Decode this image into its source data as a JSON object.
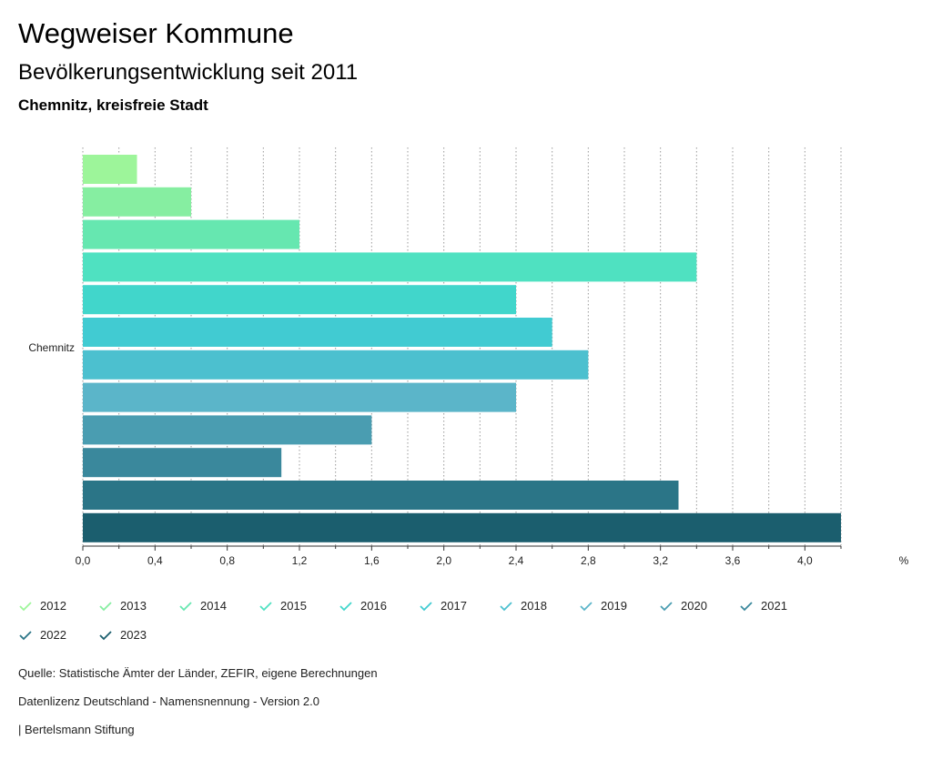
{
  "header": {
    "title": "Wegweiser Kommune",
    "subtitle": "Bevölkerungsentwicklung seit 2011",
    "region": "Chemnitz, kreisfreie Stadt"
  },
  "chart_data": {
    "type": "bar",
    "orientation": "horizontal",
    "categories": [
      "Chemnitz"
    ],
    "series": [
      {
        "name": "2012",
        "values": [
          0.3
        ],
        "color": "#9df59a"
      },
      {
        "name": "2013",
        "values": [
          0.6
        ],
        "color": "#86eea1"
      },
      {
        "name": "2014",
        "values": [
          1.2
        ],
        "color": "#66e7b0"
      },
      {
        "name": "2015",
        "values": [
          3.4
        ],
        "color": "#4fe1c1"
      },
      {
        "name": "2016",
        "values": [
          2.4
        ],
        "color": "#41d6cb"
      },
      {
        "name": "2017",
        "values": [
          2.6
        ],
        "color": "#41cbd2"
      },
      {
        "name": "2018",
        "values": [
          2.8
        ],
        "color": "#4cc0cf"
      },
      {
        "name": "2019",
        "values": [
          2.4
        ],
        "color": "#5bb5c9"
      },
      {
        "name": "2020",
        "values": [
          1.6
        ],
        "color": "#4a9db1"
      },
      {
        "name": "2021",
        "values": [
          1.1
        ],
        "color": "#3a889c"
      },
      {
        "name": "2022",
        "values": [
          3.3
        ],
        "color": "#2b7587"
      },
      {
        "name": "2023",
        "values": [
          4.2
        ],
        "color": "#1b5e6e"
      }
    ],
    "xlim": [
      0,
      4.2
    ],
    "xticks": [
      "0,0",
      "0,4",
      "0,8",
      "1,2",
      "1,6",
      "2,0",
      "2,4",
      "2,8",
      "3,2",
      "3,6",
      "4,0"
    ],
    "xtick_values": [
      0,
      0.4,
      0.8,
      1.2,
      1.6,
      2.0,
      2.4,
      2.8,
      3.2,
      3.6,
      4.0
    ],
    "unit": "%",
    "grid": true,
    "legend_position": "bottom"
  },
  "footer": {
    "source": "Quelle: Statistische Ämter der Länder, ZEFIR, eigene Berechnungen",
    "license": "Datenlizenz Deutschland - Namensnennung - Version 2.0",
    "publisher": "| Bertelsmann Stiftung"
  }
}
